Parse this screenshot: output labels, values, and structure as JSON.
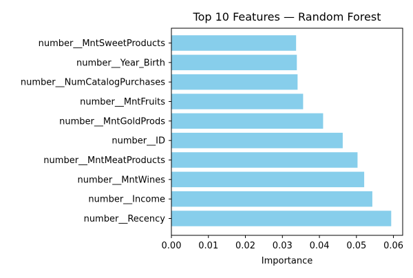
{
  "chart_data": {
    "type": "bar",
    "orientation": "horizontal",
    "title": "Top 10 Features — Random Forest",
    "xlabel": "Importance",
    "ylabel": "",
    "xlim": [
      0,
      0.0625
    ],
    "xticks": [
      0.0,
      0.01,
      0.02,
      0.03,
      0.04,
      0.05,
      0.06
    ],
    "xtick_labels": [
      "0.00",
      "0.01",
      "0.02",
      "0.03",
      "0.04",
      "0.05",
      "0.06"
    ],
    "grid": false,
    "legend": "none",
    "bar_color": "#87CEEB",
    "categories": [
      "number__Recency",
      "number__Income",
      "number__MntWines",
      "number__MntMeatProducts",
      "number__ID",
      "number__MntGoldProds",
      "number__MntFruits",
      "number__NumCatalogPurchases",
      "number__Year_Birth",
      "number__MntSweetProducts"
    ],
    "values": [
      0.0594,
      0.0543,
      0.0521,
      0.0503,
      0.0463,
      0.041,
      0.0356,
      0.0341,
      0.0339,
      0.0337
    ]
  }
}
